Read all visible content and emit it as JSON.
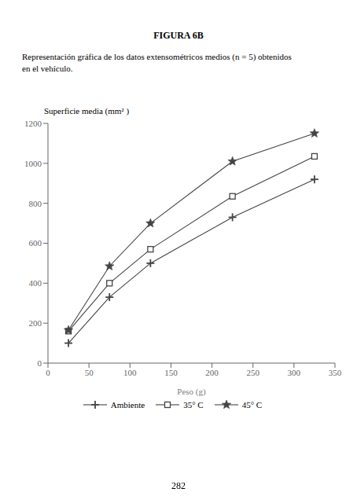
{
  "chart_data": {
    "type": "line",
    "title": "FIGURA 6B",
    "subtitle": [
      "Representación gráfica de los datos extensométricos medios (n = 5) obtenidos",
      "en el vehículo."
    ],
    "annotations": [
      "282"
    ],
    "x_label": "Peso (g)",
    "y_label": "Superficie media (mm² )",
    "x": [
      25,
      75,
      125,
      225,
      325
    ],
    "series": [
      {
        "name": "Ambiente",
        "color": "#444444",
        "marker": "plus",
        "values": [
          100,
          330,
          500,
          730,
          920
        ]
      },
      {
        "name": "35° C",
        "color": "#444444",
        "marker": "square",
        "values": [
          160,
          400,
          570,
          835,
          1035
        ]
      },
      {
        "name": "45° C",
        "color": "#444444",
        "marker": "star",
        "values": [
          165,
          485,
          700,
          1010,
          1150
        ]
      }
    ],
    "xlim": [
      0,
      350
    ],
    "ylim": [
      0,
      1200
    ],
    "xticks": [
      0,
      50,
      100,
      150,
      200,
      250,
      300,
      350
    ],
    "yticks": [
      0,
      200,
      400,
      600,
      800,
      1000,
      1200
    ],
    "grid": false,
    "legend": "bottom"
  }
}
